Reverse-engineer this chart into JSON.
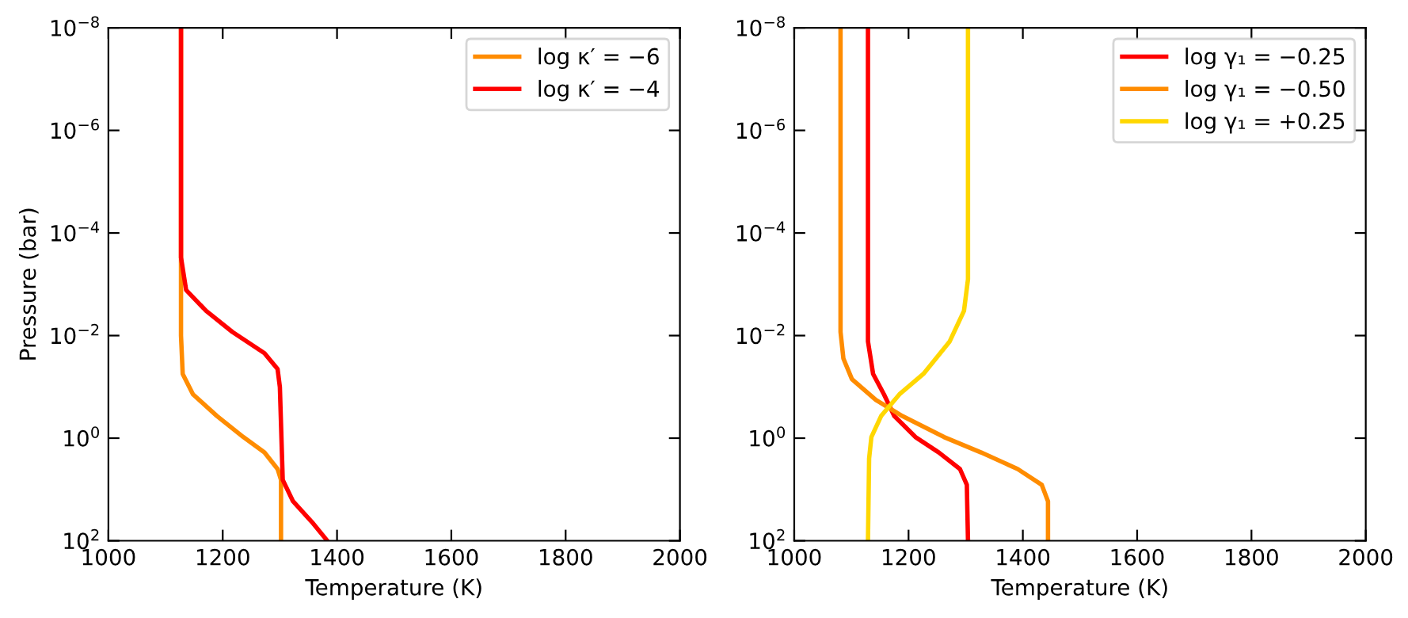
{
  "chart_data": [
    {
      "type": "line",
      "xlabel": "Temperature (K)",
      "ylabel": "Pressure (bar)",
      "log": "y",
      "xlim": [
        1000,
        2000
      ],
      "ylim": [
        100,
        1e-08
      ],
      "xticks": [
        1000,
        1200,
        1400,
        1600,
        1800,
        2000
      ],
      "yticks": [
        {
          "value": 1e-08,
          "label": "10$^{−8}$"
        },
        {
          "value": 1e-06,
          "label": "10$^{−6}$"
        },
        {
          "value": 0.0001,
          "label": "10$^{−4}$"
        },
        {
          "value": 0.01,
          "label": "10$^{−2}$"
        },
        {
          "value": 1,
          "label": "10$^{0}$"
        },
        {
          "value": 100,
          "label": "10$^{2}$"
        }
      ],
      "legend": "top right",
      "grid": false,
      "marker": "none",
      "line_style": "solid",
      "series": [
        {
          "name": "log κ′ = −6",
          "color": "#ff8c00",
          "x": [
            1127,
            1127,
            1130,
            1148,
            1190,
            1236,
            1273,
            1296,
            1302,
            1302
          ],
          "values": [
            1e-08,
            0.01,
            0.056,
            0.14,
            0.37,
            0.95,
            1.9,
            4.0,
            6.5,
            100
          ]
        },
        {
          "name": "log κ′ = −4",
          "color": "#ff0000",
          "x": [
            1127,
            1127,
            1136,
            1171,
            1217,
            1273,
            1296,
            1300,
            1305,
            1323,
            1356,
            1383
          ],
          "values": [
            1e-08,
            0.0003,
            0.0013,
            0.0033,
            0.0085,
            0.022,
            0.045,
            0.1,
            6.5,
            17,
            43,
            100
          ]
        }
      ]
    },
    {
      "type": "line",
      "xlabel": "Temperature (K)",
      "log": "y",
      "xlim": [
        1000,
        2000
      ],
      "ylim": [
        100,
        1e-08
      ],
      "xticks": [
        1000,
        1200,
        1400,
        1600,
        1800,
        2000
      ],
      "yticks": [
        {
          "value": 1e-08,
          "label": "10$^{−8}$"
        },
        {
          "value": 1e-06,
          "label": "10$^{−6}$"
        },
        {
          "value": 0.0001,
          "label": "10$^{−4}$"
        },
        {
          "value": 0.01,
          "label": "10$^{−2}$"
        },
        {
          "value": 1,
          "label": "10$^{0}$"
        },
        {
          "value": 100,
          "label": "10$^{2}$"
        }
      ],
      "legend": "top right",
      "grid": false,
      "marker": "none",
      "line_style": "solid",
      "series": [
        {
          "name": "log γ₁ = −0.25",
          "color": "#ff0000",
          "x": [
            1129,
            1129,
            1138,
            1157,
            1175,
            1212,
            1253,
            1290,
            1302,
            1304
          ],
          "values": [
            1e-08,
            0.013,
            0.056,
            0.14,
            0.37,
            0.95,
            1.9,
            4.0,
            8.1,
            100
          ]
        },
        {
          "name": "log γ₁ = −0.50",
          "color": "#ff8c00",
          "x": [
            1081,
            1081,
            1086,
            1101,
            1143,
            1189,
            1262,
            1327,
            1391,
            1433,
            1444,
            1444
          ],
          "values": [
            1e-08,
            0.0085,
            0.028,
            0.071,
            0.18,
            0.37,
            0.95,
            1.9,
            4.0,
            8.1,
            17,
            100
          ]
        },
        {
          "name": "log γ₁ = +0.25",
          "color": "#ffd700",
          "x": [
            1304,
            1304,
            1297,
            1272,
            1226,
            1184,
            1152,
            1135,
            1131,
            1129
          ],
          "values": [
            1e-08,
            0.0008,
            0.0033,
            0.013,
            0.056,
            0.14,
            0.37,
            0.95,
            2.5,
            100
          ]
        }
      ]
    }
  ]
}
